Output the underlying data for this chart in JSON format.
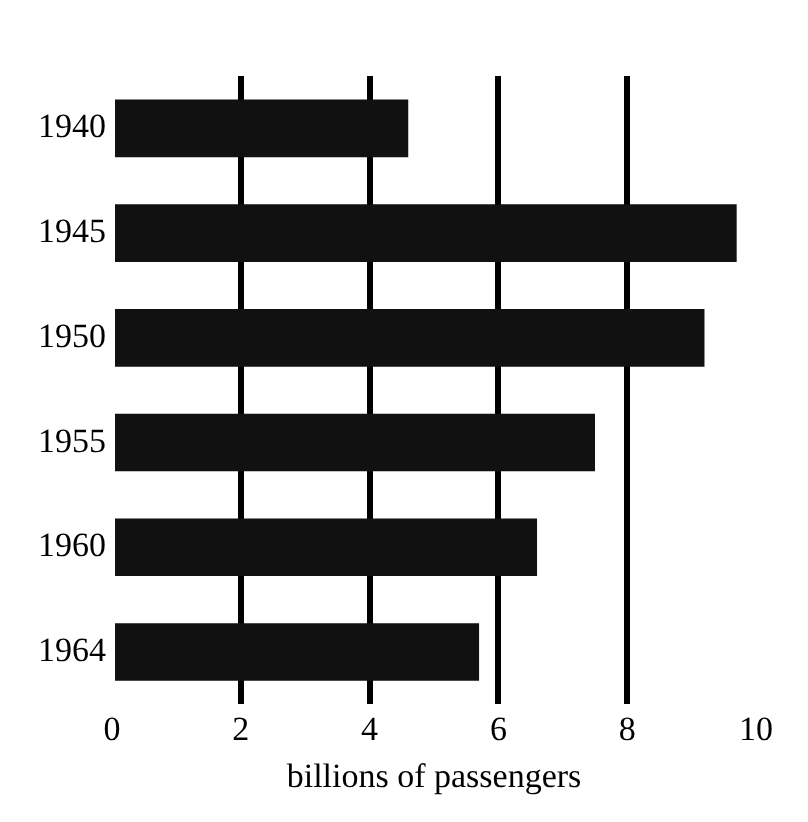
{
  "chart_data": {
    "type": "bar",
    "orientation": "horizontal",
    "xlabel": "billions of passengers",
    "categories": [
      "1940",
      "1945",
      "1950",
      "1955",
      "1960",
      "1964"
    ],
    "values": [
      4.6,
      9.7,
      9.2,
      7.5,
      6.6,
      5.7
    ],
    "color": "#111111",
    "xlim": [
      0,
      10
    ],
    "xticks": [
      0,
      2,
      4,
      6,
      8,
      10
    ],
    "grid": "x",
    "legend": false
  }
}
